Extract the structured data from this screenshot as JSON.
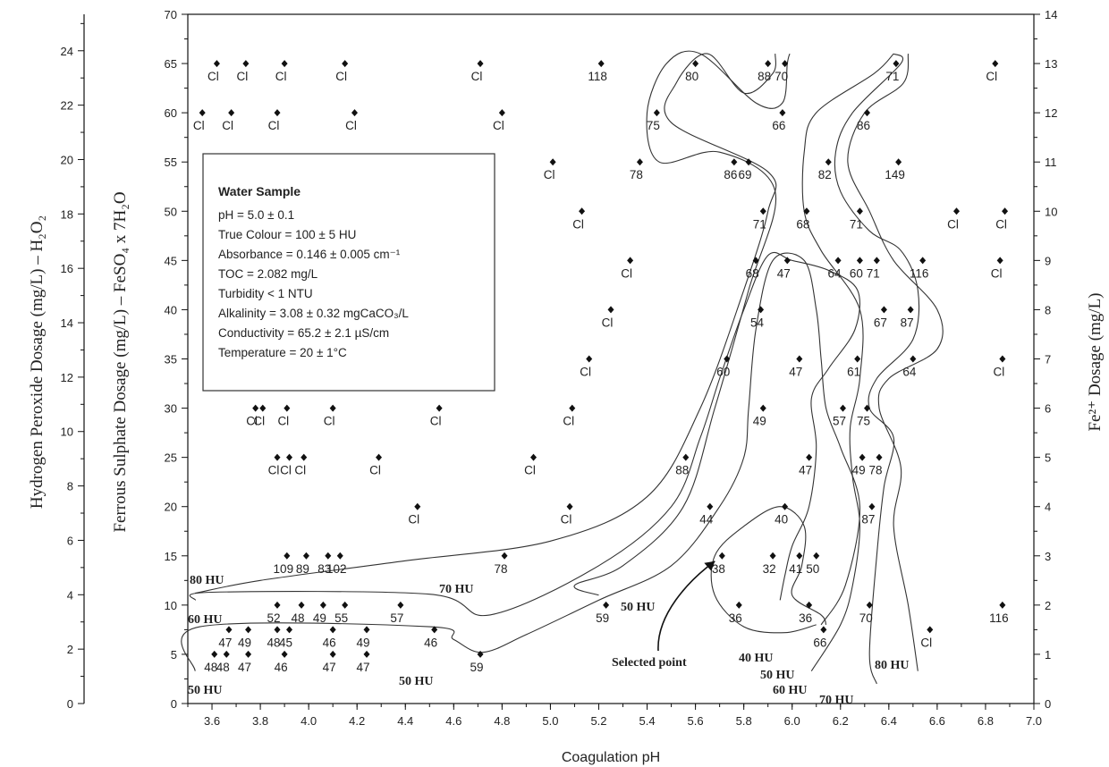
{
  "chart_data": {
    "type": "scatter",
    "title": "",
    "xlabel": "Coagulation pH",
    "ylabel_left_outer": "Hydrogen Peroxide Dosage (mg/L) – H₂O₂",
    "ylabel_left_inner": "Ferrous Sulphate Dosage (mg/L) – FeSO₄ x 7H₂O",
    "ylabel_right": "Fe²⁺ Dosage (mg/L)",
    "xlim": [
      3.5,
      7.0
    ],
    "ylim": [
      0,
      70
    ],
    "ylim_outer": [
      0,
      25.34
    ],
    "ylim_right": [
      0,
      14
    ],
    "x_ticks": [
      "3.6",
      "3.8",
      "4.0",
      "4.2",
      "4.4",
      "4.6",
      "4.8",
      "5.0",
      "5.2",
      "5.4",
      "5.6",
      "5.8",
      "6.0",
      "6.2",
      "6.4",
      "6.6",
      "6.8",
      "7.0"
    ],
    "x_tick_values": [
      3.6,
      3.8,
      4.0,
      4.2,
      4.4,
      4.6,
      4.8,
      5.0,
      5.2,
      5.4,
      5.6,
      5.8,
      6.0,
      6.2,
      6.4,
      6.6,
      6.8,
      7.0
    ],
    "y_ticks": [
      "0",
      "5",
      "10",
      "15",
      "20",
      "25",
      "30",
      "35",
      "40",
      "45",
      "50",
      "55",
      "60",
      "65",
      "70"
    ],
    "y_tick_values": [
      0,
      5,
      10,
      15,
      20,
      25,
      30,
      35,
      40,
      45,
      50,
      55,
      60,
      65,
      70
    ],
    "y_ticks_outer": [
      "0",
      "2",
      "4",
      "6",
      "8",
      "10",
      "12",
      "14",
      "16",
      "18",
      "20",
      "22",
      "24"
    ],
    "y_tick_values_outer": [
      0,
      2,
      4,
      6,
      8,
      10,
      12,
      14,
      16,
      18,
      20,
      22,
      24
    ],
    "y_ticks_right": [
      "0",
      "1",
      "2",
      "3",
      "4",
      "5",
      "6",
      "7",
      "8",
      "9",
      "10",
      "11",
      "12",
      "13",
      "14"
    ],
    "y_tick_values_right": [
      0,
      1,
      2,
      3,
      4,
      5,
      6,
      7,
      8,
      9,
      10,
      11,
      12,
      13,
      14
    ],
    "grid": false,
    "legend": null,
    "points": [
      {
        "x": 3.56,
        "y": 60,
        "label": "Cl"
      },
      {
        "x": 3.62,
        "y": 65,
        "label": "Cl"
      },
      {
        "x": 3.68,
        "y": 60,
        "label": "Cl"
      },
      {
        "x": 3.74,
        "y": 65,
        "label": "Cl"
      },
      {
        "x": 3.87,
        "y": 60,
        "label": "Cl"
      },
      {
        "x": 3.9,
        "y": 65,
        "label": "Cl"
      },
      {
        "x": 4.15,
        "y": 65,
        "label": "Cl"
      },
      {
        "x": 4.19,
        "y": 60,
        "label": "Cl"
      },
      {
        "x": 4.71,
        "y": 65,
        "label": "Cl"
      },
      {
        "x": 4.8,
        "y": 60,
        "label": "Cl"
      },
      {
        "x": 5.21,
        "y": 65,
        "label": "118"
      },
      {
        "x": 5.6,
        "y": 65,
        "label": "80"
      },
      {
        "x": 5.9,
        "y": 65,
        "label": "88"
      },
      {
        "x": 5.97,
        "y": 65,
        "label": "70"
      },
      {
        "x": 6.43,
        "y": 65,
        "label": "71"
      },
      {
        "x": 6.84,
        "y": 65,
        "label": "Cl"
      },
      {
        "x": 5.44,
        "y": 60,
        "label": "75"
      },
      {
        "x": 5.96,
        "y": 60,
        "label": "66"
      },
      {
        "x": 6.31,
        "y": 60,
        "label": "86"
      },
      {
        "x": 5.01,
        "y": 55,
        "label": "Cl"
      },
      {
        "x": 5.37,
        "y": 55,
        "label": "78"
      },
      {
        "x": 5.76,
        "y": 55,
        "label": "86"
      },
      {
        "x": 5.82,
        "y": 55,
        "label": "69"
      },
      {
        "x": 6.15,
        "y": 55,
        "label": "82"
      },
      {
        "x": 6.44,
        "y": 55,
        "label": "149"
      },
      {
        "x": 5.13,
        "y": 50,
        "label": "Cl"
      },
      {
        "x": 5.88,
        "y": 50,
        "label": "71"
      },
      {
        "x": 6.06,
        "y": 50,
        "label": "68"
      },
      {
        "x": 6.28,
        "y": 50,
        "label": "71"
      },
      {
        "x": 6.68,
        "y": 50,
        "label": "Cl"
      },
      {
        "x": 6.88,
        "y": 50,
        "label": "Cl"
      },
      {
        "x": 5.33,
        "y": 45,
        "label": "Cl"
      },
      {
        "x": 5.85,
        "y": 45,
        "label": "68"
      },
      {
        "x": 5.98,
        "y": 45,
        "label": "47"
      },
      {
        "x": 6.19,
        "y": 45,
        "label": "64"
      },
      {
        "x": 6.28,
        "y": 45,
        "label": "60"
      },
      {
        "x": 6.35,
        "y": 45,
        "label": "71"
      },
      {
        "x": 6.54,
        "y": 45,
        "label": "116"
      },
      {
        "x": 6.86,
        "y": 45,
        "label": "Cl"
      },
      {
        "x": 5.25,
        "y": 40,
        "label": "Cl"
      },
      {
        "x": 5.87,
        "y": 40,
        "label": "54"
      },
      {
        "x": 6.38,
        "y": 40,
        "label": "67"
      },
      {
        "x": 6.49,
        "y": 40,
        "label": "87"
      },
      {
        "x": 5.16,
        "y": 35,
        "label": "Cl"
      },
      {
        "x": 5.73,
        "y": 35,
        "label": "60"
      },
      {
        "x": 6.03,
        "y": 35,
        "label": "47"
      },
      {
        "x": 6.27,
        "y": 35,
        "label": "61"
      },
      {
        "x": 6.5,
        "y": 35,
        "label": "64"
      },
      {
        "x": 6.87,
        "y": 35,
        "label": "Cl"
      },
      {
        "x": 3.78,
        "y": 30,
        "label": "Cl"
      },
      {
        "x": 3.81,
        "y": 30,
        "label": "Cl"
      },
      {
        "x": 3.91,
        "y": 30,
        "label": "Cl"
      },
      {
        "x": 4.1,
        "y": 30,
        "label": "Cl"
      },
      {
        "x": 4.54,
        "y": 30,
        "label": "Cl"
      },
      {
        "x": 5.09,
        "y": 30,
        "label": "Cl"
      },
      {
        "x": 5.88,
        "y": 30,
        "label": "49"
      },
      {
        "x": 6.21,
        "y": 30,
        "label": "57"
      },
      {
        "x": 6.31,
        "y": 30,
        "label": "75"
      },
      {
        "x": 3.87,
        "y": 25,
        "label": "Cl"
      },
      {
        "x": 3.92,
        "y": 25,
        "label": "Cl"
      },
      {
        "x": 3.98,
        "y": 25,
        "label": "Cl"
      },
      {
        "x": 4.29,
        "y": 25,
        "label": "Cl"
      },
      {
        "x": 4.93,
        "y": 25,
        "label": "Cl"
      },
      {
        "x": 5.56,
        "y": 25,
        "label": "88"
      },
      {
        "x": 6.07,
        "y": 25,
        "label": "47"
      },
      {
        "x": 6.29,
        "y": 25,
        "label": "49"
      },
      {
        "x": 6.36,
        "y": 25,
        "label": "78"
      },
      {
        "x": 4.45,
        "y": 20,
        "label": "Cl"
      },
      {
        "x": 5.08,
        "y": 20,
        "label": "Cl"
      },
      {
        "x": 5.66,
        "y": 20,
        "label": "44"
      },
      {
        "x": 5.97,
        "y": 20,
        "label": "40"
      },
      {
        "x": 6.33,
        "y": 20,
        "label": "87"
      },
      {
        "x": 3.91,
        "y": 15,
        "label": "109"
      },
      {
        "x": 3.99,
        "y": 15,
        "label": "89"
      },
      {
        "x": 4.08,
        "y": 15,
        "label": "83"
      },
      {
        "x": 4.13,
        "y": 15,
        "label": "102"
      },
      {
        "x": 4.81,
        "y": 15,
        "label": "78"
      },
      {
        "x": 5.71,
        "y": 15,
        "label": "38"
      },
      {
        "x": 5.92,
        "y": 15,
        "label": "32"
      },
      {
        "x": 6.03,
        "y": 15,
        "label": "41"
      },
      {
        "x": 6.1,
        "y": 15,
        "label": "50"
      },
      {
        "x": 3.87,
        "y": 10,
        "label": "52"
      },
      {
        "x": 3.97,
        "y": 10,
        "label": "48"
      },
      {
        "x": 4.06,
        "y": 10,
        "label": "49"
      },
      {
        "x": 4.15,
        "y": 10,
        "label": "55"
      },
      {
        "x": 4.38,
        "y": 10,
        "label": "57"
      },
      {
        "x": 5.23,
        "y": 10,
        "label": "59"
      },
      {
        "x": 5.78,
        "y": 10,
        "label": "36"
      },
      {
        "x": 6.07,
        "y": 10,
        "label": "36"
      },
      {
        "x": 6.32,
        "y": 10,
        "label": "70"
      },
      {
        "x": 6.87,
        "y": 10,
        "label": "116"
      },
      {
        "x": 3.67,
        "y": 7.5,
        "label": "47"
      },
      {
        "x": 3.75,
        "y": 7.5,
        "label": "49"
      },
      {
        "x": 3.87,
        "y": 7.5,
        "label": "48"
      },
      {
        "x": 3.92,
        "y": 7.5,
        "label": "45"
      },
      {
        "x": 4.1,
        "y": 7.5,
        "label": "46"
      },
      {
        "x": 4.24,
        "y": 7.5,
        "label": "49"
      },
      {
        "x": 4.52,
        "y": 7.5,
        "label": "46"
      },
      {
        "x": 6.13,
        "y": 7.5,
        "label": "66"
      },
      {
        "x": 6.57,
        "y": 7.5,
        "label": "Cl"
      },
      {
        "x": 3.61,
        "y": 5,
        "label": "48"
      },
      {
        "x": 3.66,
        "y": 5,
        "label": "48"
      },
      {
        "x": 3.75,
        "y": 5,
        "label": "47"
      },
      {
        "x": 3.9,
        "y": 5,
        "label": "46"
      },
      {
        "x": 4.1,
        "y": 5,
        "label": "47"
      },
      {
        "x": 4.24,
        "y": 5,
        "label": "47"
      },
      {
        "x": 4.71,
        "y": 5,
        "label": "59"
      }
    ],
    "contours": [
      {
        "label": "80 HU",
        "points": [
          [
            3.53,
            11.2
          ],
          [
            3.8,
            12.5
          ],
          [
            4.4,
            14.5
          ],
          [
            5.0,
            16.5
          ],
          [
            5.4,
            21
          ],
          [
            5.62,
            30
          ],
          [
            5.8,
            42
          ],
          [
            5.9,
            50
          ],
          [
            5.9,
            54
          ],
          [
            5.5,
            59
          ],
          [
            5.52,
            63
          ],
          [
            5.65,
            66
          ],
          [
            5.8,
            62
          ],
          [
            5.92,
            64
          ],
          [
            5.93,
            66
          ]
        ]
      },
      {
        "label": "70 HU",
        "points": [
          [
            5.2,
            11
          ],
          [
            5.1,
            12
          ],
          [
            5.3,
            14
          ],
          [
            5.55,
            20
          ],
          [
            5.68,
            30
          ],
          [
            5.82,
            42
          ],
          [
            5.93,
            52
          ],
          [
            5.7,
            56
          ],
          [
            5.45,
            55
          ],
          [
            5.4,
            60
          ],
          [
            5.48,
            65
          ],
          [
            5.62,
            66
          ],
          [
            5.85,
            61
          ],
          [
            5.96,
            61
          ],
          [
            5.98,
            65
          ],
          [
            5.99,
            66
          ]
        ]
      },
      {
        "label": "60 HU",
        "points": [
          [
            3.53,
            10.5
          ],
          [
            3.6,
            11.3
          ],
          [
            4.5,
            11.1
          ],
          [
            4.75,
            9
          ],
          [
            5.2,
            14
          ],
          [
            5.5,
            20
          ],
          [
            5.62,
            27
          ],
          [
            5.7,
            33
          ],
          [
            5.8,
            40
          ],
          [
            5.9,
            45.5
          ],
          [
            6.0,
            45
          ],
          [
            6.15,
            44
          ],
          [
            6.27,
            42
          ],
          [
            6.26,
            38
          ],
          [
            6.15,
            34
          ],
          [
            6.08,
            31
          ],
          [
            6.1,
            26
          ],
          [
            6.07,
            20
          ],
          [
            6.0,
            16
          ],
          [
            5.97,
            13
          ],
          [
            5.95,
            10.5
          ]
        ]
      },
      {
        "label": "50 HU",
        "points": [
          [
            3.53,
            3.3
          ],
          [
            3.55,
            7.8
          ],
          [
            4.5,
            7.8
          ],
          [
            4.6,
            6.5
          ],
          [
            4.72,
            5.2
          ],
          [
            4.9,
            7
          ],
          [
            5.2,
            10.5
          ],
          [
            5.5,
            14
          ],
          [
            5.7,
            20
          ],
          [
            5.8,
            25
          ],
          [
            5.82,
            30
          ],
          [
            5.85,
            38
          ],
          [
            5.92,
            45
          ],
          [
            6.05,
            45
          ],
          [
            6.1,
            40
          ],
          [
            6.12,
            35
          ],
          [
            6.14,
            30
          ],
          [
            6.2,
            26
          ],
          [
            6.28,
            20
          ],
          [
            6.22,
            12
          ],
          [
            6.12,
            8
          ]
        ]
      },
      {
        "label": "40 HU",
        "points": [
          [
            6.1,
            8
          ],
          [
            5.97,
            7.2
          ],
          [
            5.8,
            7.8
          ],
          [
            5.68,
            11
          ],
          [
            5.68,
            15
          ],
          [
            5.8,
            18
          ],
          [
            5.95,
            20
          ],
          [
            6.05,
            18
          ],
          [
            6.04,
            14
          ],
          [
            6.0,
            11
          ],
          [
            6.12,
            9
          ],
          [
            6.14,
            8
          ]
        ]
      },
      {
        "label": "60 HU",
        "points": [
          [
            6.08,
            3.3
          ],
          [
            6.2,
            8
          ],
          [
            6.25,
            12
          ],
          [
            6.28,
            18
          ],
          [
            6.25,
            23
          ],
          [
            6.24,
            28
          ],
          [
            6.28,
            33
          ],
          [
            6.28,
            40
          ],
          [
            6.12,
            46
          ],
          [
            6.05,
            50
          ],
          [
            6.05,
            56
          ],
          [
            6.1,
            60
          ],
          [
            6.34,
            64
          ],
          [
            6.42,
            66
          ]
        ]
      },
      {
        "label": "70 HU",
        "points": [
          [
            6.35,
            2
          ],
          [
            6.32,
            5
          ],
          [
            6.35,
            15
          ],
          [
            6.38,
            22
          ],
          [
            6.42,
            27
          ],
          [
            6.32,
            30
          ],
          [
            6.35,
            33
          ],
          [
            6.5,
            37
          ],
          [
            6.52,
            42
          ],
          [
            6.45,
            46
          ],
          [
            6.32,
            48
          ],
          [
            6.2,
            52
          ],
          [
            6.18,
            56
          ],
          [
            6.25,
            60
          ],
          [
            6.45,
            65
          ],
          [
            6.42,
            66
          ]
        ]
      },
      {
        "label": "80 HU",
        "points": [
          [
            6.52,
            3.3
          ],
          [
            6.48,
            10
          ],
          [
            6.42,
            18
          ],
          [
            6.45,
            24
          ],
          [
            6.36,
            30
          ],
          [
            6.4,
            33
          ],
          [
            6.6,
            36
          ],
          [
            6.6,
            40
          ],
          [
            6.42,
            45
          ],
          [
            6.32,
            50
          ],
          [
            6.23,
            55
          ],
          [
            6.3,
            60
          ],
          [
            6.46,
            63
          ],
          [
            6.48,
            66
          ]
        ]
      }
    ],
    "contour_labels": [
      "80 HU",
      "70 HU",
      "60 HU",
      "50 HU",
      "50 HU",
      "50 HU",
      "40 HU",
      "60 HU",
      "70 HU",
      "80 HU"
    ],
    "annotation": "Selected point",
    "annotation_target": {
      "x": 5.71,
      "y": 15
    },
    "info_box": {
      "title": "Water Sample",
      "lines": [
        "pH = 5.0 ± 0.1",
        "True Colour = 100 ± 5 HU",
        "Absorbance = 0.146 ± 0.005 cm⁻¹",
        "TOC = 2.082 mg/L",
        "Turbidity < 1 NTU",
        "Alkalinity = 3.08 ± 0.32 mgCaCO₃/L",
        "Conductivity = 65.2 ± 2.1 µS/cm",
        "Temperature = 20 ± 1°C"
      ]
    }
  }
}
